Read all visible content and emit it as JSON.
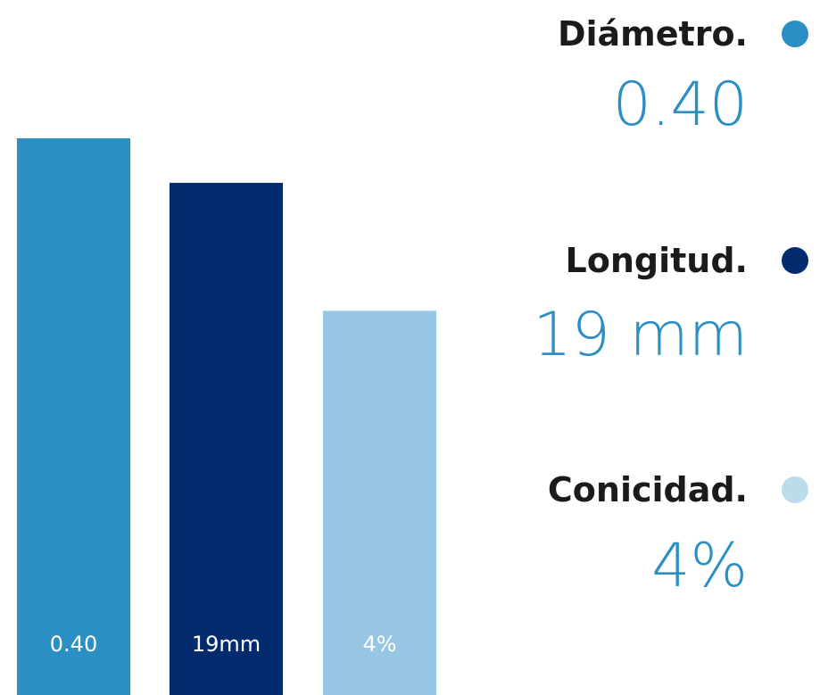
{
  "chart_data": {
    "type": "bar",
    "categories": [
      "Diámetro.",
      "Longitud.",
      "Conicidad."
    ],
    "values": [
      0.4,
      19,
      4
    ],
    "bar_labels": [
      "0.40",
      "19mm",
      "4%"
    ],
    "legend": [
      {
        "name": "Diámetro.",
        "value": "0.40",
        "color": "#2b8fc4"
      },
      {
        "name": "Longitud.",
        "value": "19 mm",
        "color": "#032b6e"
      },
      {
        "name": "Conicidad.",
        "value": "4%",
        "color": "#bcdcec"
      }
    ],
    "bar_colors": [
      "#2b8fc4",
      "#032b6e",
      "#96c6e3"
    ],
    "bar_fill_fractions": [
      1.0,
      0.92,
      0.69
    ],
    "value_color": "#2b8fc4",
    "title": "",
    "xlabel": "",
    "ylabel": "",
    "grid": false,
    "legend_position": "right"
  }
}
